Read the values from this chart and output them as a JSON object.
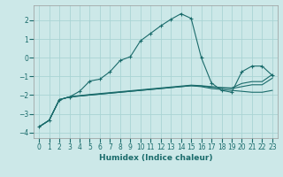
{
  "xlabel": "Humidex (Indice chaleur)",
  "bg_color": "#cce8e8",
  "grid_color": "#aad4d4",
  "line_color": "#1a6b6b",
  "x_values": [
    0,
    1,
    2,
    3,
    4,
    5,
    6,
    7,
    8,
    9,
    10,
    11,
    12,
    13,
    14,
    15,
    16,
    17,
    18,
    19,
    20,
    21,
    22,
    23
  ],
  "line1_y": [
    -3.7,
    -3.35,
    -2.25,
    -2.1,
    -1.8,
    -1.25,
    -1.15,
    -0.75,
    -0.15,
    0.05,
    0.9,
    1.3,
    1.7,
    2.05,
    2.35,
    2.1,
    0.0,
    -1.35,
    -1.75,
    -1.85,
    -0.75,
    -0.45,
    -0.45,
    -0.95
  ],
  "line2_y": [
    -3.7,
    -3.35,
    -2.25,
    -2.1,
    -2.05,
    -2.0,
    -1.95,
    -1.9,
    -1.85,
    -1.8,
    -1.75,
    -1.7,
    -1.65,
    -1.6,
    -1.55,
    -1.5,
    -1.55,
    -1.65,
    -1.7,
    -1.75,
    -1.8,
    -1.85,
    -1.85,
    -1.75
  ],
  "line3_y": [
    -3.7,
    -3.35,
    -2.25,
    -2.1,
    -2.05,
    -2.0,
    -1.95,
    -1.9,
    -1.85,
    -1.8,
    -1.75,
    -1.7,
    -1.65,
    -1.6,
    -1.55,
    -1.5,
    -1.52,
    -1.58,
    -1.62,
    -1.65,
    -1.55,
    -1.45,
    -1.45,
    -1.1
  ],
  "line4_y": [
    -3.7,
    -3.35,
    -2.25,
    -2.1,
    -2.03,
    -1.97,
    -1.92,
    -1.87,
    -1.82,
    -1.77,
    -1.72,
    -1.67,
    -1.62,
    -1.57,
    -1.52,
    -1.47,
    -1.5,
    -1.55,
    -1.6,
    -1.62,
    -1.38,
    -1.28,
    -1.28,
    -0.9
  ],
  "ylim": [
    -4.3,
    2.8
  ],
  "yticks": [
    -4,
    -3,
    -2,
    -1,
    0,
    1,
    2
  ],
  "xlim": [
    -0.5,
    23.5
  ],
  "xticks": [
    0,
    1,
    2,
    3,
    4,
    5,
    6,
    7,
    8,
    9,
    10,
    11,
    12,
    13,
    14,
    15,
    16,
    17,
    18,
    19,
    20,
    21,
    22,
    23
  ]
}
